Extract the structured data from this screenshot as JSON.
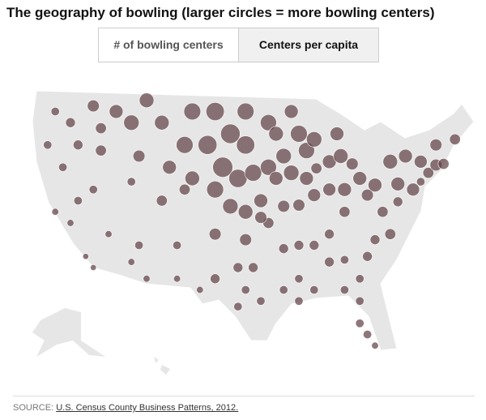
{
  "header": {
    "title": "The geography of bowling (larger circles = more bowling centers)"
  },
  "tabs": [
    "# of bowling centers",
    "Centers per capita"
  ],
  "active_tab": 1,
  "map": {
    "color": "#5e3d41",
    "points": [
      [
        -122,
        47,
        3
      ],
      [
        -120,
        46,
        4
      ],
      [
        -117,
        47.5,
        6
      ],
      [
        -123,
        44,
        3
      ],
      [
        -119,
        44,
        4
      ],
      [
        -121,
        42,
        3
      ],
      [
        -122,
        38,
        2
      ],
      [
        -120,
        37,
        2
      ],
      [
        -118,
        34,
        1.5
      ],
      [
        -117,
        33,
        1.5
      ],
      [
        -119,
        39,
        3
      ],
      [
        -116,
        43.5,
        5
      ],
      [
        -114,
        47,
        8
      ],
      [
        -112,
        46,
        10
      ],
      [
        -108,
        46,
        9
      ],
      [
        -111,
        43,
        6
      ],
      [
        -112,
        40.7,
        3
      ],
      [
        -115,
        36,
        2
      ],
      [
        -112,
        33.5,
        2
      ],
      [
        -111,
        35,
        3
      ],
      [
        -106,
        35,
        3
      ],
      [
        -106,
        32,
        2
      ],
      [
        -108,
        39,
        5
      ],
      [
        -105,
        40,
        5
      ],
      [
        -107,
        42,
        8
      ],
      [
        -105,
        44,
        12
      ],
      [
        -104,
        41,
        9
      ],
      [
        -101,
        47,
        14
      ],
      [
        -97,
        47,
        12
      ],
      [
        -99,
        45,
        16
      ],
      [
        -97,
        44,
        14
      ],
      [
        -102,
        44,
        15
      ],
      [
        -100,
        42,
        17
      ],
      [
        -98,
        41,
        14
      ],
      [
        -96,
        41.5,
        12
      ],
      [
        -101,
        40,
        12
      ],
      [
        -99,
        38.5,
        10
      ],
      [
        -97,
        38,
        9
      ],
      [
        -95,
        39,
        8
      ],
      [
        -101,
        36,
        6
      ],
      [
        -97,
        35.5,
        6
      ],
      [
        -98,
        33,
        4
      ],
      [
        -97,
        31,
        3
      ],
      [
        -101,
        32,
        4
      ],
      [
        -95,
        30,
        3
      ],
      [
        -98,
        29.5,
        3
      ],
      [
        -103,
        31,
        2
      ],
      [
        -94,
        46,
        11
      ],
      [
        -93,
        45,
        9
      ],
      [
        -91,
        47,
        8
      ],
      [
        -90,
        45,
        12
      ],
      [
        -89,
        43.5,
        11
      ],
      [
        -88,
        44.5,
        10
      ],
      [
        -92,
        43,
        10
      ],
      [
        -94,
        42,
        11
      ],
      [
        -91,
        41.5,
        10
      ],
      [
        -93,
        41,
        8
      ],
      [
        -89,
        41,
        8
      ],
      [
        -87.7,
        41.9,
        5
      ],
      [
        -86,
        42.5,
        8
      ],
      [
        -84.5,
        43,
        9
      ],
      [
        -85,
        45,
        8
      ],
      [
        -83,
        42.3,
        6
      ],
      [
        -88,
        39.5,
        7
      ],
      [
        -90,
        38.6,
        6
      ],
      [
        -92,
        38.5,
        6
      ],
      [
        -94,
        37,
        5
      ],
      [
        -86,
        40,
        7
      ],
      [
        -84,
        40,
        8
      ],
      [
        -82,
        41,
        8
      ],
      [
        -81,
        39.5,
        6
      ],
      [
        -84,
        38,
        5
      ],
      [
        -86,
        36,
        4
      ],
      [
        -88,
        35,
        4
      ],
      [
        -90,
        35,
        4
      ],
      [
        -92,
        34.7,
        4
      ],
      [
        -90,
        32,
        3
      ],
      [
        -92,
        31,
        3
      ],
      [
        -88,
        31,
        3
      ],
      [
        -86,
        33.5,
        4
      ],
      [
        -84,
        33.7,
        3
      ],
      [
        -84,
        31,
        3
      ],
      [
        -82,
        32,
        3
      ],
      [
        -81,
        34,
        4
      ],
      [
        -80,
        35.5,
        4
      ],
      [
        -78,
        36,
        5
      ],
      [
        -77,
        38.9,
        4
      ],
      [
        -79,
        38,
        5
      ],
      [
        -80,
        40.4,
        8
      ],
      [
        -77,
        40.5,
        8
      ],
      [
        -75,
        40,
        7
      ],
      [
        -78,
        42.5,
        9
      ],
      [
        -76,
        43,
        8
      ],
      [
        -74,
        42.5,
        7
      ],
      [
        -74,
        40.7,
        3
      ],
      [
        -73,
        41.5,
        5
      ],
      [
        -72,
        42.2,
        6
      ],
      [
        -71,
        42.3,
        5
      ],
      [
        -72,
        44,
        6
      ],
      [
        -69.5,
        44.5,
        5
      ],
      [
        -82,
        28,
        3
      ],
      [
        -81,
        27,
        3
      ],
      [
        -80,
        26,
        2
      ],
      [
        -82,
        30,
        3
      ],
      [
        -90,
        30,
        3
      ],
      [
        -95,
        37.5,
        6
      ],
      [
        -96,
        33,
        4
      ],
      [
        -110,
        32,
        2
      ],
      [
        -117,
        40,
        3
      ],
      [
        -116,
        45.5,
        5
      ],
      [
        -104,
        47,
        12
      ],
      [
        -110,
        48,
        9
      ]
    ]
  },
  "source": {
    "label": "SOURCE:",
    "link": "U.S. Census County Business Patterns, 2012."
  }
}
